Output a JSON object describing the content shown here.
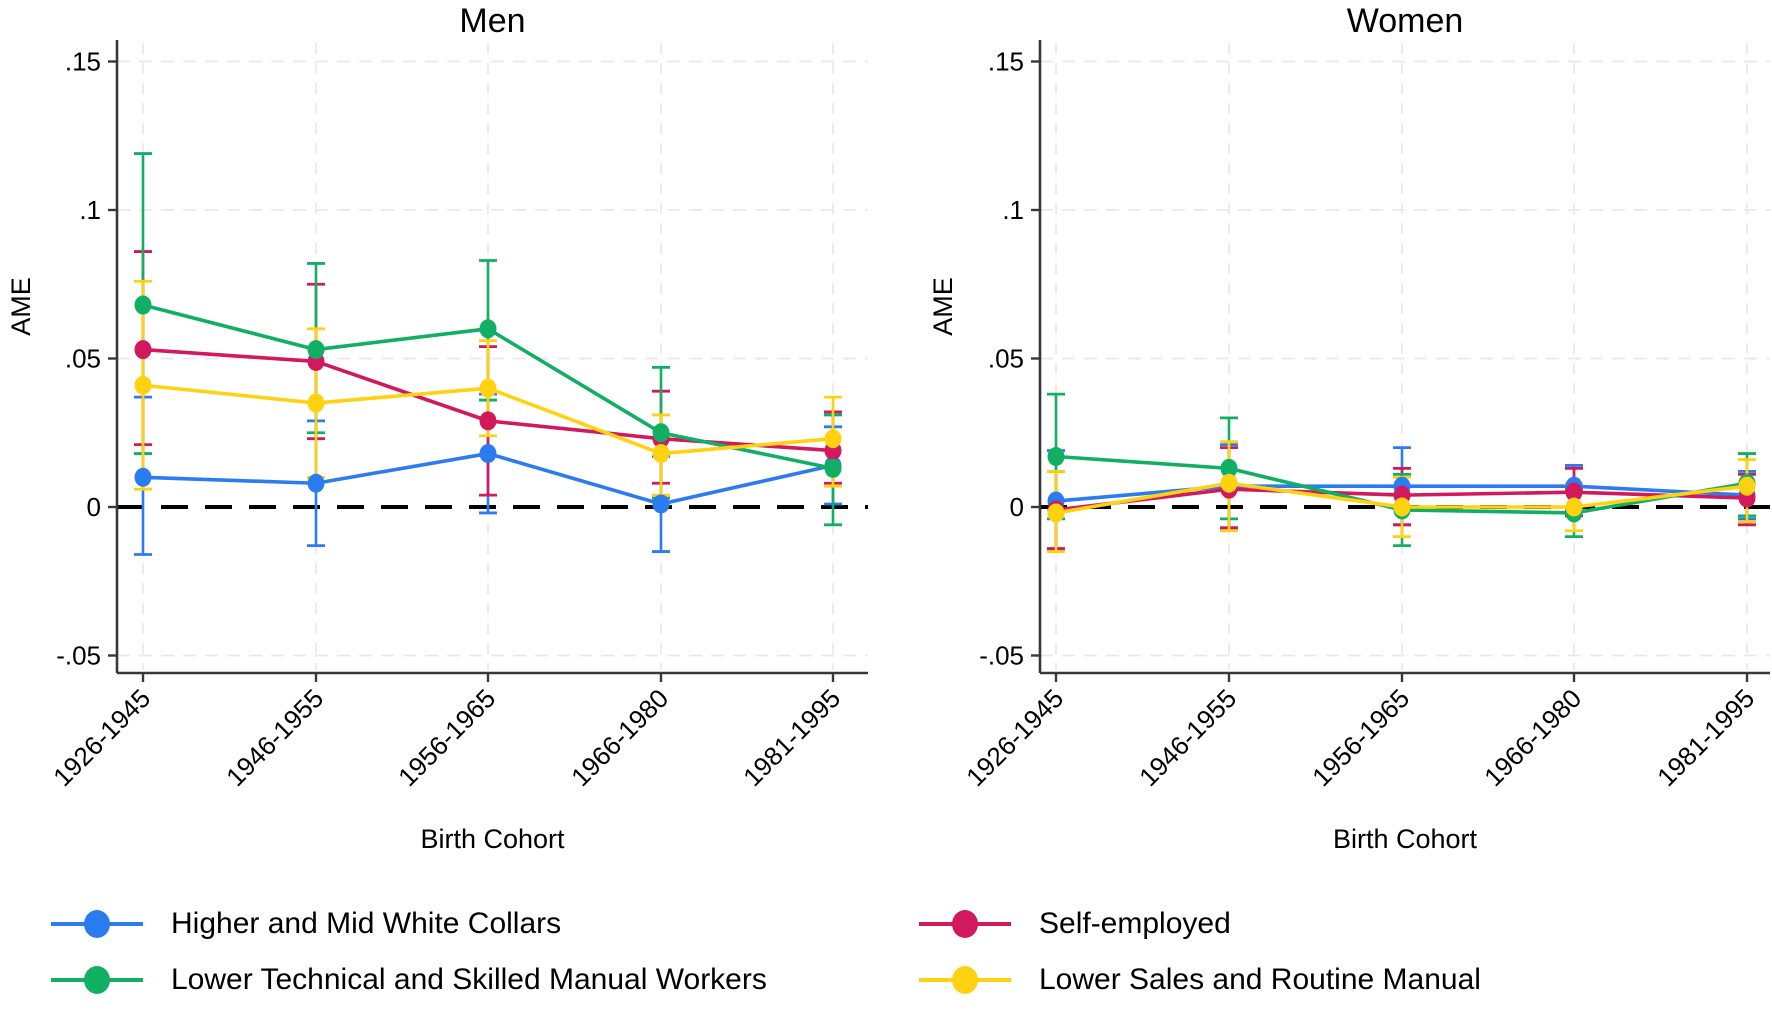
{
  "figure": {
    "background": "#ffffff",
    "accent_colors": {
      "blue": "#2b7cf0",
      "crimson": "#d2195e",
      "green": "#11af63",
      "yellow": "#ffd211",
      "grid": "#e9e9e9",
      "axis": "#383838",
      "zero_line": "#000000"
    },
    "legend": {
      "items": [
        {
          "key": "white-collars",
          "label": "Higher and Mid White Collars",
          "color": "#2b7cf0"
        },
        {
          "key": "self-employed",
          "label": "Self-employed",
          "color": "#d2195e"
        },
        {
          "key": "technical-manual",
          "label": "Lower Technical and Skilled Manual Workers",
          "color": "#11af63"
        },
        {
          "key": "sales-manual",
          "label": "Lower Sales and Routine Manual",
          "color": "#ffd211"
        }
      ]
    }
  },
  "chart_data": [
    {
      "type": "line",
      "title": "Men",
      "xlabel": "Birth Cohort",
      "ylabel": "AME",
      "categories": [
        "1926-1945",
        "1946-1955",
        "1956-1965",
        "1966-1980",
        "1981-1995"
      ],
      "ytick_labels": [
        ".15",
        ".1",
        ".05",
        "0",
        "-.05"
      ],
      "ytick_values": [
        0.15,
        0.1,
        0.05,
        0,
        -0.05
      ],
      "ylim": [
        -0.056,
        0.157
      ],
      "refline": 0,
      "grid": true,
      "legend_position": "bottom",
      "series": [
        {
          "key": "white-collars",
          "name": "Higher and Mid White Collars",
          "color": "#2b7cf0",
          "values": [
            0.01,
            0.008,
            0.018,
            0.001,
            0.014
          ],
          "ci_low": [
            -0.016,
            -0.013,
            -0.002,
            -0.015,
            0.001
          ],
          "ci_high": [
            0.037,
            0.029,
            0.038,
            0.017,
            0.027
          ]
        },
        {
          "key": "self-employed",
          "name": "Self-employed",
          "color": "#d2195e",
          "values": [
            0.053,
            0.049,
            0.029,
            0.023,
            0.019
          ],
          "ci_low": [
            0.021,
            0.023,
            0.004,
            0.008,
            0.008
          ],
          "ci_high": [
            0.086,
            0.075,
            0.054,
            0.039,
            0.032
          ]
        },
        {
          "key": "technical-manual",
          "name": "Lower Technical and Skilled Manual Workers",
          "color": "#11af63",
          "values": [
            0.068,
            0.053,
            0.06,
            0.025,
            0.013
          ],
          "ci_low": [
            0.018,
            0.025,
            0.036,
            0.003,
            -0.006
          ],
          "ci_high": [
            0.119,
            0.082,
            0.083,
            0.047,
            0.031
          ]
        },
        {
          "key": "sales-manual",
          "name": "Lower Sales and Routine Manual",
          "color": "#ffd211",
          "values": [
            0.041,
            0.035,
            0.04,
            0.018,
            0.023
          ],
          "ci_low": [
            0.006,
            0.01,
            0.024,
            0.004,
            0.007
          ],
          "ci_high": [
            0.076,
            0.06,
            0.056,
            0.031,
            0.037
          ]
        }
      ]
    },
    {
      "type": "line",
      "title": "Women",
      "xlabel": "Birth Cohort",
      "ylabel": "AME",
      "categories": [
        "1926-1945",
        "1946-1955",
        "1956-1965",
        "1966-1980",
        "1981-1995"
      ],
      "ytick_labels": [
        ".15",
        ".1",
        ".05",
        "0",
        "-.05"
      ],
      "ytick_values": [
        0.15,
        0.1,
        0.05,
        0,
        -0.05
      ],
      "ylim": [
        -0.056,
        0.157
      ],
      "refline": 0,
      "grid": true,
      "legend_position": "bottom",
      "series": [
        {
          "key": "white-collars",
          "name": "Higher and Mid White Collars",
          "color": "#2b7cf0",
          "values": [
            0.002,
            0.007,
            0.007,
            0.007,
            0.004
          ],
          "ci_low": [
            -0.015,
            -0.007,
            -0.006,
            -0.001,
            -0.004
          ],
          "ci_high": [
            0.019,
            0.021,
            0.02,
            0.014,
            0.012
          ]
        },
        {
          "key": "self-employed",
          "name": "Self-employed",
          "color": "#d2195e",
          "values": [
            -0.001,
            0.006,
            0.004,
            0.005,
            0.003
          ],
          "ci_low": [
            -0.014,
            -0.007,
            -0.006,
            -0.003,
            -0.006
          ],
          "ci_high": [
            0.012,
            0.02,
            0.013,
            0.013,
            0.011
          ]
        },
        {
          "key": "technical-manual",
          "name": "Lower Technical and Skilled Manual Workers",
          "color": "#11af63",
          "values": [
            0.017,
            0.013,
            -0.001,
            -0.002,
            0.008
          ],
          "ci_low": [
            -0.004,
            -0.004,
            -0.013,
            -0.01,
            -0.003
          ],
          "ci_high": [
            0.038,
            0.03,
            0.011,
            0.006,
            0.018
          ]
        },
        {
          "key": "sales-manual",
          "name": "Lower Sales and Routine Manual",
          "color": "#ffd211",
          "values": [
            -0.002,
            0.008,
            0.0,
            0.0,
            0.007
          ],
          "ci_low": [
            -0.015,
            -0.008,
            -0.01,
            -0.008,
            -0.005
          ],
          "ci_high": [
            0.012,
            0.022,
            0.01,
            0.008,
            0.016
          ]
        }
      ]
    }
  ]
}
